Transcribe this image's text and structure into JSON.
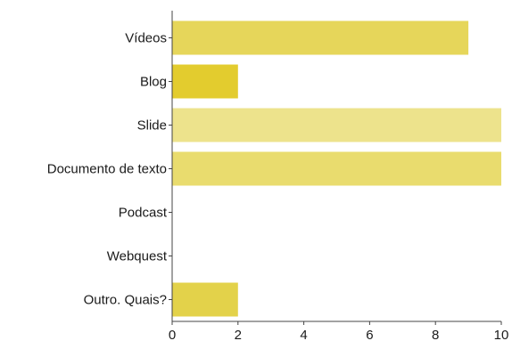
{
  "chart_data": {
    "type": "bar",
    "orientation": "horizontal",
    "title": "",
    "xlabel": "",
    "ylabel": "",
    "categories": [
      "Vídeos",
      "Blog",
      "Slide",
      "Documento de texto",
      "Podcast",
      "Webquest",
      "Outro. Quais?"
    ],
    "values": [
      9,
      2,
      10,
      10,
      0,
      0,
      2
    ],
    "bar_colors": [
      "#e6d65a",
      "#e3cc2e",
      "#ede38c",
      "#e9dc6e",
      "#e9dc6e",
      "#e9dc6e",
      "#e3d24a"
    ],
    "xlim": [
      0,
      10
    ],
    "xticks": [
      0,
      2,
      4,
      6,
      8,
      10
    ],
    "grid": false,
    "legend": "none"
  }
}
